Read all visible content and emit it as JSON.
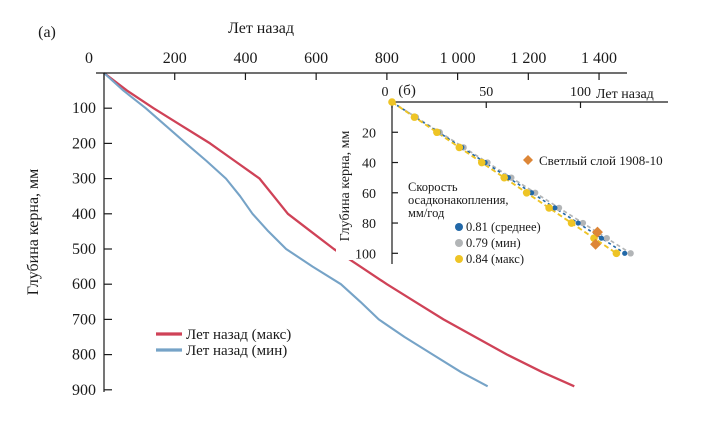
{
  "figure": {
    "panel_a_label": "(а)",
    "panel_b_label": "(б)",
    "background": "#ffffff",
    "axis_color": "#1a1a1a"
  },
  "chart_data": [
    {
      "panel": "(а)",
      "type": "line",
      "xlabel": "Лет назад",
      "ylabel": "Глубина керна, мм",
      "x_axis_position": "top",
      "y_axis_inverted": true,
      "xlim": [
        0,
        1480
      ],
      "ylim": [
        0,
        910
      ],
      "grid": false,
      "legend_position": "inside-lower-left",
      "xtick_values": [
        0,
        200,
        400,
        600,
        800,
        1000,
        1200,
        1400
      ],
      "xtick_labels": [
        "0",
        "200",
        "400",
        "600",
        "800",
        "1 000",
        "1 200",
        "1 400"
      ],
      "ytick_values": [
        100,
        200,
        300,
        400,
        500,
        600,
        700,
        800,
        900
      ],
      "series": [
        {
          "name": "Лет назад (макс)",
          "color": "#cf4257",
          "depth_mm": [
            0,
            50,
            100,
            150,
            200,
            250,
            300,
            350,
            400,
            450,
            500,
            550,
            600,
            650,
            700,
            750,
            800,
            850,
            890
          ],
          "years": [
            0,
            65,
            140,
            220,
            300,
            370,
            440,
            480,
            520,
            585,
            650,
            725,
            800,
            880,
            960,
            1050,
            1140,
            1240,
            1330
          ]
        },
        {
          "name": "Лет назад (мин)",
          "color": "#76a3c7",
          "depth_mm": [
            0,
            50,
            100,
            150,
            200,
            250,
            300,
            350,
            400,
            450,
            500,
            550,
            600,
            650,
            700,
            750,
            800,
            850,
            890
          ],
          "years": [
            0,
            55,
            118,
            175,
            232,
            290,
            345,
            385,
            420,
            465,
            515,
            590,
            670,
            725,
            777,
            850,
            930,
            1010,
            1085
          ]
        }
      ]
    },
    {
      "panel": "(б)",
      "type": "line-scatter",
      "xlabel": "Лет назад",
      "ylabel": "Глубина керна, мм",
      "x_axis_position": "top",
      "y_axis_inverted": true,
      "xlim": [
        0,
        146
      ],
      "ylim": [
        0,
        107
      ],
      "grid": false,
      "xtick_values": [
        0,
        50,
        100
      ],
      "xtick_labels": [
        "0",
        "50",
        "100"
      ],
      "ytick_values": [
        20,
        40,
        60,
        80,
        100
      ],
      "legend_title_lines": [
        "Скорость",
        "осадконакопления,",
        "мм/год"
      ],
      "series": [
        {
          "name": "0.81 (среднее)",
          "rate_mm_per_year": 0.81,
          "color": "#2268a8",
          "marker": "circle",
          "marker_radius": 2.6,
          "line_dash": "3 3",
          "marker_depths_mm": [
            0,
            10,
            20,
            30,
            40,
            50,
            60,
            70,
            80,
            90,
            100
          ]
        },
        {
          "name": "0.79 (мин)",
          "rate_mm_per_year": 0.79,
          "color": "#b2b5b7",
          "marker": "circle",
          "marker_radius": 3.2,
          "line_dash": "4 3",
          "marker_depths_mm": [
            0,
            10,
            20,
            30,
            40,
            50,
            60,
            70,
            80,
            90,
            100
          ]
        },
        {
          "name": "0.84 (макс)",
          "rate_mm_per_year": 0.84,
          "color": "#eec425",
          "marker": "circle",
          "marker_radius": 3.8,
          "line_dash": "5 3",
          "marker_depths_mm": [
            0,
            10,
            20,
            30,
            40,
            50,
            60,
            70,
            80,
            90,
            100
          ]
        }
      ],
      "annotation": {
        "label": "Светлый слой 1908-10",
        "color": "#dd8637",
        "marker": "diamond",
        "points": [
          {
            "years_ago": 109,
            "depth_mm": 86
          },
          {
            "years_ago": 108,
            "depth_mm": 94
          }
        ]
      }
    }
  ]
}
